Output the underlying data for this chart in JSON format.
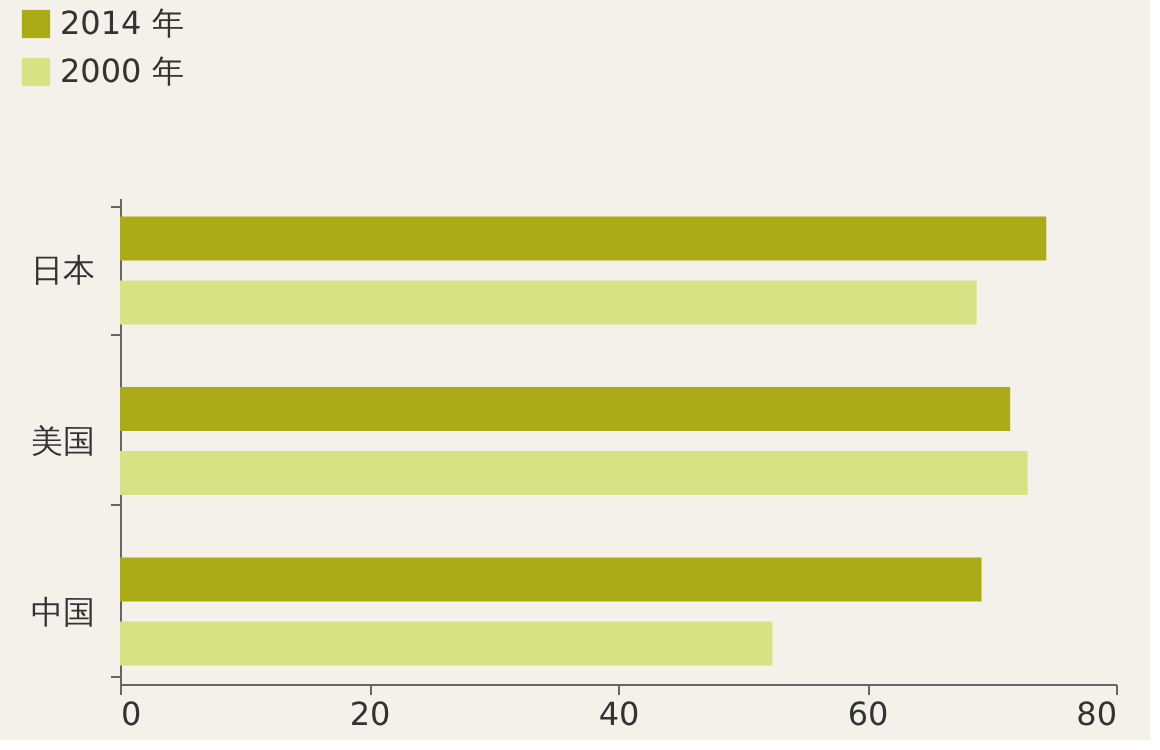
{
  "chart_data": {
    "type": "bar",
    "orientation": "horizontal",
    "categories": [
      "日本",
      "美国",
      "中国"
    ],
    "series": [
      {
        "name": "2014 年",
        "color": "#abab17",
        "values": [
          74.4,
          71.5,
          69.2
        ]
      },
      {
        "name": "2000 年",
        "color": "#d6e283",
        "values": [
          68.8,
          72.9,
          52.4
        ]
      }
    ],
    "xlim": [
      0,
      80
    ],
    "xticks": [
      0,
      20,
      40,
      60,
      80
    ],
    "grid": false,
    "legend": "top left"
  }
}
